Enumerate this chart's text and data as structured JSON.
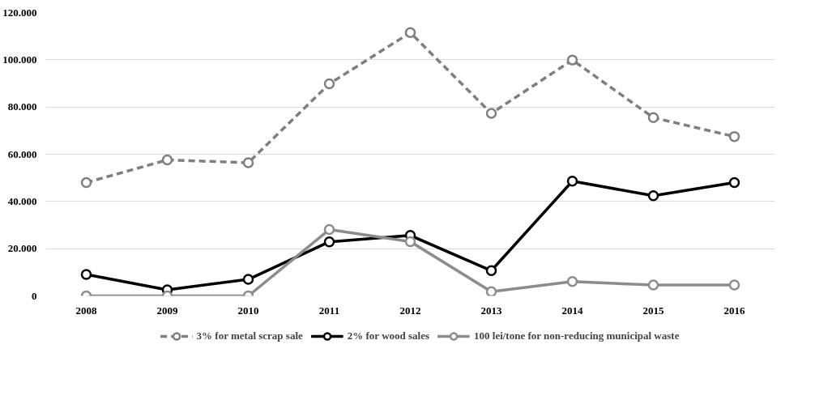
{
  "chart_data": {
    "type": "line",
    "categories": [
      "2008",
      "2009",
      "2010",
      "2011",
      "2012",
      "2013",
      "2014",
      "2015",
      "2016"
    ],
    "series": [
      {
        "name": "3% for metal scrap sale",
        "color": "#7f7f7f",
        "line_style": "dashed",
        "values": [
          48000,
          57600,
          56400,
          89800,
          111500,
          77300,
          99900,
          75500,
          67500
        ]
      },
      {
        "name": "2% for wood sales",
        "color": "#000000",
        "line_style": "solid",
        "values": [
          9100,
          2600,
          7000,
          22900,
          25600,
          10700,
          48600,
          42400,
          48000
        ]
      },
      {
        "name": "100 lei/tone for non-reducing municipal waste",
        "color": "#8c8c8c",
        "line_style": "solid",
        "values": [
          0,
          0,
          0,
          28100,
          23000,
          1800,
          6100,
          4600,
          4600
        ]
      }
    ],
    "ylim": [
      0,
      120000
    ],
    "yticks": [
      0,
      {
        "value": 20000,
        "label": "20.000"
      },
      {
        "value": 40000,
        "label": "40.000"
      },
      {
        "value": 60000,
        "label": "60.000"
      },
      {
        "value": 80000,
        "label": "80.000"
      },
      {
        "value": 100000,
        "label": "100.000"
      },
      {
        "value": 120000,
        "label": "120.000"
      }
    ],
    "grid": "y",
    "legend": "bottom",
    "marker": "circle"
  }
}
